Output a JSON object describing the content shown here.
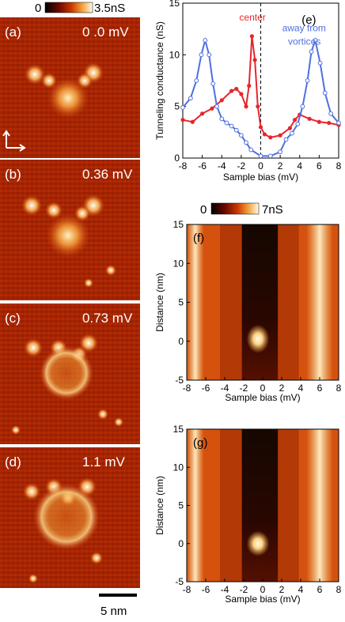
{
  "figure": {
    "map_scale": {
      "min": "0",
      "max": "3.5nS"
    },
    "panel_labels": [
      "(a)",
      "(b)",
      "(c)",
      "(d)"
    ],
    "energies": [
      "0 .0 mV",
      "0.36 mV",
      "0.73 mV",
      "1.1 mV"
    ],
    "scale_bar": "5 nm",
    "map_scale_2": {
      "min": "0",
      "max": "7nS"
    }
  },
  "chart_data": [
    {
      "type": "line",
      "panel": "(e)",
      "xlabel": "Sample bias (mV)",
      "ylabel": "Tunneling conductance (nS)",
      "xlim": [
        -8,
        8
      ],
      "ylim": [
        0,
        15
      ],
      "xticks": [
        -8,
        -6,
        -4,
        -2,
        0,
        2,
        4,
        6,
        8
      ],
      "yticks": [
        0,
        5,
        10,
        15
      ],
      "series": [
        {
          "name": "center",
          "color": "#e8252b",
          "x": [
            -8,
            -7,
            -6,
            -5,
            -4,
            -3,
            -2.5,
            -2,
            -1.5,
            -1.2,
            -0.9,
            -0.6,
            -0.3,
            0,
            0.4,
            1,
            2,
            3,
            3.5,
            4,
            5,
            6,
            7,
            8
          ],
          "y": [
            3.7,
            3.5,
            4.3,
            4.8,
            5.6,
            6.5,
            6.7,
            6.2,
            5.0,
            7.0,
            11.8,
            9.5,
            5.0,
            3.0,
            2.3,
            2.0,
            2.2,
            2.9,
            3.7,
            4.2,
            3.8,
            3.5,
            3.4,
            3.2
          ]
        },
        {
          "name": "away from vortices",
          "color": "#4f6fe0",
          "x": [
            -8,
            -7.2,
            -6.6,
            -6.1,
            -5.7,
            -5.3,
            -4.9,
            -4.5,
            -4,
            -3.5,
            -3,
            -2.5,
            -2,
            -1.5,
            -1,
            0,
            1,
            2,
            2.6,
            3.2,
            3.8,
            4.3,
            4.8,
            5.2,
            5.6,
            6.1,
            6.6,
            7.2,
            8
          ],
          "y": [
            4.9,
            5.8,
            7.5,
            10.0,
            11.4,
            10.0,
            7.2,
            5.0,
            3.8,
            3.4,
            3.1,
            2.7,
            2.2,
            1.5,
            0.8,
            0.2,
            0.2,
            0.6,
            1.8,
            2.4,
            3.3,
            5.0,
            7.5,
            10.3,
            11.4,
            9.2,
            6.3,
            4.3,
            3.4
          ]
        }
      ],
      "legend_position": "top"
    },
    {
      "type": "heatmap",
      "panel": "(f)",
      "xlabel": "Sample bias (mV)",
      "ylabel": "Distance (nm)",
      "xlim": [
        -8,
        8
      ],
      "ylim": [
        -5,
        15
      ],
      "xticks": [
        -8,
        -6,
        -4,
        -2,
        0,
        2,
        4,
        6,
        8
      ],
      "yticks": [
        -5,
        0,
        5,
        10,
        15
      ],
      "zlim": [
        0,
        7
      ]
    },
    {
      "type": "heatmap",
      "panel": "(g)",
      "xlabel": "Sample bias (mV)",
      "ylabel": "Distance (nm)",
      "xlim": [
        -8,
        8
      ],
      "ylim": [
        -5,
        15
      ],
      "xticks": [
        -8,
        -6,
        -4,
        -2,
        0,
        2,
        4,
        6,
        8
      ],
      "yticks": [
        -5,
        0,
        5,
        10,
        15
      ],
      "zlim": [
        0,
        7
      ]
    }
  ]
}
